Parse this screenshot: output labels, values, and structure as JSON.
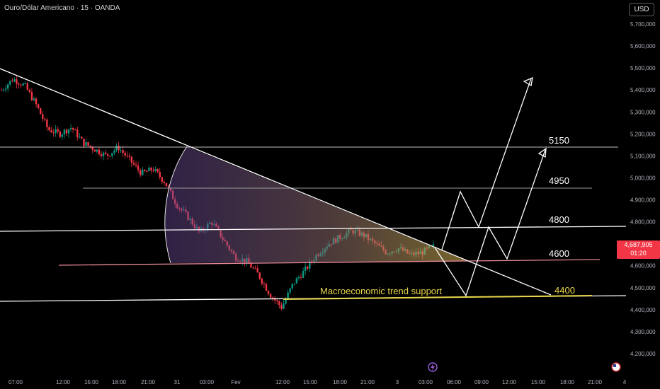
{
  "header": {
    "title": "Ouro/Dólar Americano · 15 · OANDA"
  },
  "currency_button": {
    "label": "USD"
  },
  "y_axis": {
    "ticks": [
      "5,700,000",
      "5,600,000",
      "5,500,000",
      "5,400,000",
      "5,300,000",
      "5,200,000",
      "5,100,000",
      "5,000,000",
      "4,900,000",
      "4,800,000",
      "4,600,000",
      "4,500,000",
      "4,400,000",
      "4,300,000",
      "4,200,000"
    ]
  },
  "x_axis": {
    "ticks": [
      "07:00",
      "12:00",
      "15:00",
      "18:00",
      "21:00",
      "31",
      "03:00",
      "Fev",
      "12:00",
      "15:00",
      "18:00",
      "21:00",
      "3",
      "03:00",
      "06:00",
      "09:00",
      "12:00",
      "15:00",
      "18:00",
      "21:00",
      "4"
    ]
  },
  "current_price": {
    "value": "4,687,905",
    "countdown": "01:20"
  },
  "annotations": {
    "levels": [
      "5150",
      "4950",
      "4800",
      "4600",
      "4400"
    ],
    "support_label": "Macroeconomic trend support"
  },
  "colors": {
    "background": "#000000",
    "bullish": "#089981",
    "bearish": "#f23645",
    "support": "#e8d64a",
    "price_tag": "#f23645"
  },
  "icons": {
    "lightning": "lightning-icon",
    "flag": "us-flag-icon"
  },
  "chart_data": {
    "type": "candlestick",
    "y_ticks": [
      5700000,
      5600000,
      5500000,
      5400000,
      5300000,
      5200000,
      5100000,
      5000000,
      4900000,
      4800000,
      4600000,
      4500000,
      4400000,
      4300000,
      4200000
    ],
    "price_path": [
      5400000,
      5450000,
      5420000,
      5330000,
      5220000,
      5200000,
      5230000,
      5160000,
      5130000,
      5100000,
      5140000,
      5080000,
      5020000,
      5040000,
      4980000,
      4880000,
      4820000,
      4750000,
      4800000,
      4720000,
      4640000,
      4620000,
      4560000,
      4470000,
      4410000,
      4520000,
      4580000,
      4650000,
      4700000,
      4730000,
      4760000,
      4740000,
      4700000,
      4660000,
      4680000,
      4650000,
      4660000,
      4687905
    ],
    "levels": [
      5150,
      4950,
      4800,
      4600,
      4400
    ]
  }
}
